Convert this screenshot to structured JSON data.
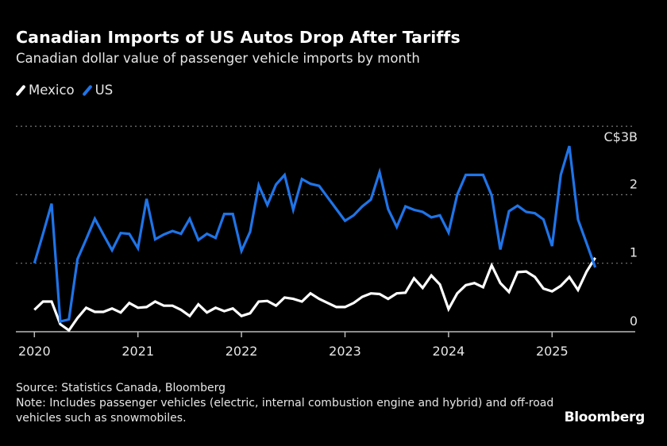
{
  "colors": {
    "background": "#000000",
    "mexico": "#ffffff",
    "us": "#1f74e8",
    "grid": "#777777",
    "axis": "#bbbbbb",
    "text": "#e6e6e6"
  },
  "logo": "Bloomberg",
  "footer": {
    "source": "Source: Statistics Canada, Bloomberg",
    "note": "Note: Includes passenger vehicles (electric, internal combustion engine and hybrid) and off-road vehicles such as snowmobiles."
  },
  "chart_data": {
    "type": "line",
    "title": "Canadian Imports of US Autos Drop After Tariffs",
    "subtitle": "Canadian dollar value of passenger vehicle imports by month",
    "legend_position": "top-left",
    "grid": true,
    "x_start": "2020-01",
    "x_frequency": "monthly",
    "x_ticks": [
      "2020",
      "2021",
      "2022",
      "2023",
      "2024",
      "2025"
    ],
    "y_ticks": [
      {
        "value": 3,
        "label": "C$3B"
      },
      {
        "value": 2,
        "label": "2"
      },
      {
        "value": 1,
        "label": "1"
      },
      {
        "value": 0,
        "label": "0"
      }
    ],
    "ylim": [
      0,
      3
    ],
    "y_unit": "C$ billions",
    "series": [
      {
        "name": "Mexico",
        "color": "#ffffff",
        "values": [
          0.32,
          0.44,
          0.44,
          0.11,
          0.02,
          0.2,
          0.35,
          0.29,
          0.29,
          0.34,
          0.28,
          0.42,
          0.35,
          0.36,
          0.44,
          0.38,
          0.38,
          0.32,
          0.23,
          0.4,
          0.28,
          0.35,
          0.3,
          0.34,
          0.23,
          0.27,
          0.44,
          0.45,
          0.38,
          0.5,
          0.48,
          0.44,
          0.56,
          0.48,
          0.42,
          0.36,
          0.36,
          0.42,
          0.51,
          0.56,
          0.55,
          0.48,
          0.56,
          0.57,
          0.78,
          0.64,
          0.82,
          0.69,
          0.33,
          0.56,
          0.68,
          0.71,
          0.65,
          0.97,
          0.71,
          0.58,
          0.87,
          0.88,
          0.8,
          0.63,
          0.59,
          0.67,
          0.8,
          0.61,
          0.88,
          1.08
        ]
      },
      {
        "name": "US",
        "color": "#1f74e8",
        "values": [
          1.0,
          1.43,
          1.87,
          0.15,
          0.18,
          1.06,
          1.35,
          1.65,
          1.42,
          1.19,
          1.44,
          1.43,
          1.22,
          1.94,
          1.35,
          1.42,
          1.47,
          1.43,
          1.65,
          1.34,
          1.43,
          1.37,
          1.72,
          1.72,
          1.18,
          1.46,
          2.14,
          1.85,
          2.15,
          2.29,
          1.78,
          2.23,
          2.16,
          2.13,
          1.96,
          1.79,
          1.62,
          1.7,
          1.83,
          1.93,
          2.33,
          1.79,
          1.53,
          1.83,
          1.78,
          1.75,
          1.67,
          1.7,
          1.45,
          2.0,
          2.29,
          2.29,
          2.29,
          1.99,
          1.2,
          1.76,
          1.84,
          1.75,
          1.73,
          1.64,
          1.25,
          2.29,
          2.71,
          1.64,
          1.29,
          0.94
        ]
      }
    ]
  }
}
